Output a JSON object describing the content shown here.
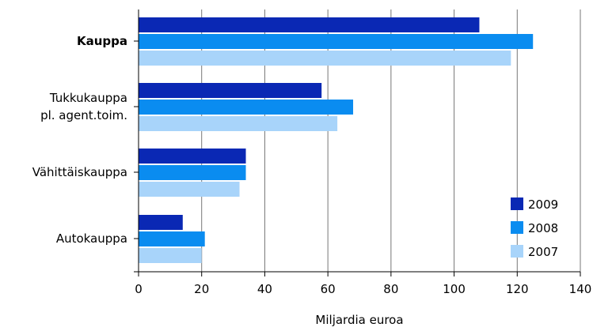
{
  "chart_data": {
    "type": "bar",
    "orientation": "horizontal",
    "categories": [
      {
        "lines": [
          "Kauppa"
        ],
        "bold": true
      },
      {
        "lines": [
          "Tukkukauppa",
          "pl. agent.toim."
        ],
        "bold": false
      },
      {
        "lines": [
          "Vähittäiskauppa"
        ],
        "bold": false
      },
      {
        "lines": [
          "Autokauppa"
        ],
        "bold": false
      }
    ],
    "series": [
      {
        "name": "2009",
        "color": "#0a28b4",
        "values": [
          108,
          58,
          34,
          14
        ]
      },
      {
        "name": "2008",
        "color": "#0a8cf0",
        "values": [
          125,
          68,
          34,
          21
        ]
      },
      {
        "name": "2007",
        "color": "#a8d4fa",
        "values": [
          118,
          63,
          32,
          20
        ]
      }
    ],
    "xlabel": "Miljardia euroa",
    "xlim": [
      0,
      140
    ],
    "xticks": [
      0,
      20,
      40,
      60,
      80,
      100,
      120,
      140
    ],
    "grid": "vertical",
    "legend_position": "bottom-right"
  }
}
